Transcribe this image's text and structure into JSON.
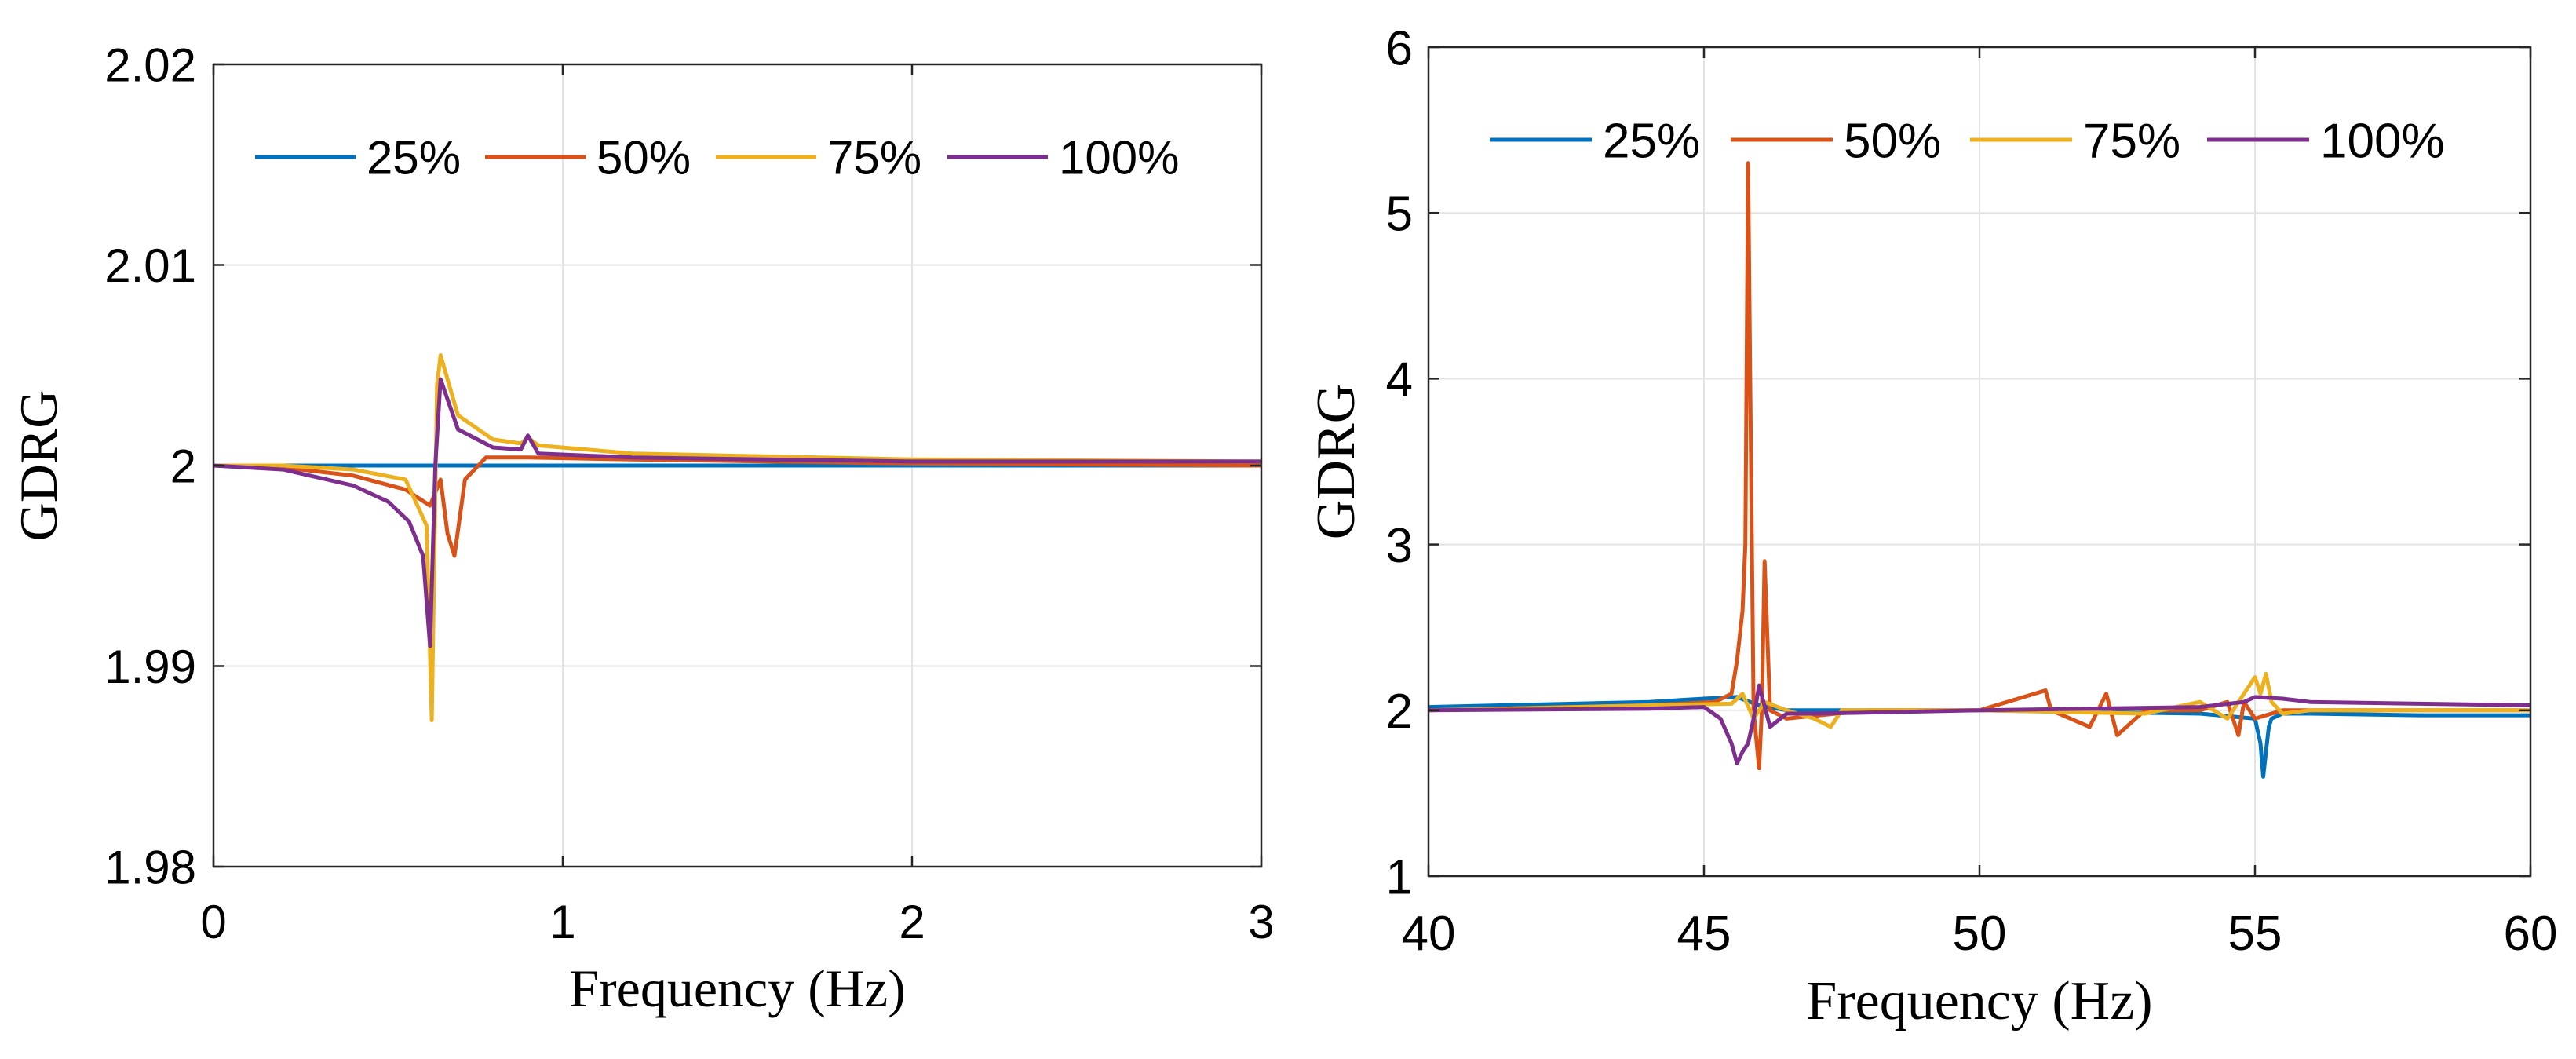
{
  "chart_data": [
    {
      "type": "line",
      "xlabel": "Frequency (Hz)",
      "ylabel": "GDRG",
      "xlim": [
        0,
        3
      ],
      "ylim": [
        1.98,
        2.02
      ],
      "x_ticks": [
        0,
        1,
        2,
        3
      ],
      "x_tick_labels": [
        "0",
        "1",
        "2",
        "3"
      ],
      "y_ticks": [
        1.98,
        1.99,
        2.0,
        2.01,
        2.02
      ],
      "y_tick_labels": [
        "1.98",
        "1.99",
        "2",
        "2.01",
        "2.02"
      ],
      "grid": true,
      "legend_position": "top",
      "series": [
        {
          "name": "25%",
          "color": "#0072BD",
          "x": [
            0,
            0.5,
            1,
            1.5,
            2,
            2.5,
            3
          ],
          "y": [
            2.0,
            2.0,
            2.0,
            2.0,
            2.0,
            2.0,
            2.0
          ]
        },
        {
          "name": "50%",
          "color": "#D95319",
          "x": [
            0,
            0.2,
            0.4,
            0.55,
            0.62,
            0.65,
            0.67,
            0.69,
            0.72,
            0.78,
            0.9,
            1.2,
            2,
            3
          ],
          "y": [
            2.0,
            1.9999,
            1.9995,
            1.9988,
            1.998,
            1.9993,
            1.9966,
            1.9955,
            1.9993,
            2.0004,
            2.0004,
            2.0003,
            2.0001,
            2.0
          ],
          "annotations": [
            "dip to 1.9955 near 0.69 Hz"
          ]
        },
        {
          "name": "75%",
          "color": "#EDB120",
          "x": [
            0,
            0.2,
            0.4,
            0.55,
            0.61,
            0.625,
            0.64,
            0.65,
            0.7,
            0.8,
            0.88,
            0.9,
            0.93,
            1.2,
            2,
            3
          ],
          "y": [
            2.0,
            2.0,
            1.9998,
            1.9993,
            1.997,
            1.9873,
            2.004,
            2.0055,
            2.0025,
            2.0013,
            2.0011,
            2.0014,
            2.001,
            2.0006,
            2.0003,
            2.0002
          ],
          "annotations": [
            "min 1.9873 near 0.63 Hz",
            "peak 2.0055 near 0.65 Hz"
          ]
        },
        {
          "name": "100%",
          "color": "#7E2F8E",
          "x": [
            0,
            0.2,
            0.4,
            0.5,
            0.56,
            0.6,
            0.62,
            0.635,
            0.65,
            0.7,
            0.8,
            0.88,
            0.9,
            0.93,
            1.2,
            2,
            3
          ],
          "y": [
            2.0,
            1.9998,
            1.999,
            1.9982,
            1.9972,
            1.9955,
            1.991,
            2.0,
            2.0043,
            2.0018,
            2.0009,
            2.0008,
            2.0015,
            2.0006,
            2.0004,
            2.0002,
            2.0002
          ],
          "annotations": [
            "min 1.991 near 0.62 Hz",
            "peak 2.0043 near 0.65 Hz"
          ]
        }
      ]
    },
    {
      "type": "line",
      "xlabel": "Frequency (Hz)",
      "ylabel": "GDRG",
      "xlim": [
        40,
        60
      ],
      "ylim": [
        1,
        6
      ],
      "x_ticks": [
        40,
        45,
        50,
        55,
        60
      ],
      "x_tick_labels": [
        "40",
        "45",
        "50",
        "55",
        "60"
      ],
      "y_ticks": [
        1,
        2,
        3,
        4,
        5,
        6
      ],
      "y_tick_labels": [
        "1",
        "2",
        "3",
        "4",
        "5",
        "6"
      ],
      "grid": true,
      "legend_position": "top",
      "series": [
        {
          "name": "25%",
          "color": "#0072BD",
          "x": [
            40,
            44,
            45,
            45.6,
            46,
            46.5,
            47,
            50,
            54,
            55,
            55.1,
            55.15,
            55.2,
            55.25,
            55.3,
            55.5,
            56,
            58,
            60
          ],
          "y": [
            2.02,
            2.05,
            2.07,
            2.08,
            2.03,
            2.0,
            2.0,
            2.0,
            1.98,
            1.95,
            1.8,
            1.6,
            1.75,
            1.9,
            1.95,
            1.98,
            1.98,
            1.97,
            1.97
          ],
          "annotations": [
            "dip to 1.6 near 55.2 Hz"
          ]
        },
        {
          "name": "50%",
          "color": "#D95319",
          "x": [
            40,
            44,
            45.2,
            45.5,
            45.6,
            45.7,
            45.75,
            45.8,
            45.85,
            45.9,
            46.0,
            46.05,
            46.1,
            46.2,
            46.5,
            48,
            50,
            51.2,
            51.3,
            52,
            52.3,
            52.5,
            53,
            54,
            54.5,
            54.7,
            54.8,
            55,
            55.5,
            56,
            58,
            60
          ],
          "y": [
            2.0,
            2.03,
            2.05,
            2.1,
            2.3,
            2.6,
            3.0,
            5.3,
            3.6,
            2.0,
            1.65,
            2.0,
            2.9,
            2.0,
            1.95,
            2.0,
            2.0,
            2.12,
            2.0,
            1.9,
            2.1,
            1.85,
            2.0,
            2.0,
            2.05,
            1.85,
            2.05,
            1.95,
            2.0,
            2.0,
            2.0,
            2.0
          ],
          "annotations": [
            "peak 5.3 near 45.8 Hz",
            "spike 2.9 near 46.1 Hz"
          ]
        },
        {
          "name": "75%",
          "color": "#EDB120",
          "x": [
            40,
            44,
            45.5,
            45.7,
            45.9,
            46.1,
            46.5,
            47,
            47.3,
            47.5,
            50,
            53,
            54,
            54.5,
            54.9,
            55.0,
            55.1,
            55.2,
            55.3,
            55.5,
            56,
            58,
            60
          ],
          "y": [
            2.0,
            2.03,
            2.04,
            2.1,
            1.95,
            2.05,
            2.0,
            1.95,
            1.9,
            2.0,
            2.0,
            1.98,
            2.05,
            1.95,
            2.15,
            2.2,
            2.1,
            2.22,
            2.05,
            1.98,
            2.0,
            2.0,
            2.0
          ],
          "annotations": [
            "peak 2.22 near 55.2 Hz"
          ]
        },
        {
          "name": "100%",
          "color": "#7E2F8E",
          "x": [
            40,
            44,
            45,
            45.3,
            45.5,
            45.6,
            45.7,
            45.8,
            45.9,
            46.0,
            46.2,
            46.5,
            47,
            50,
            54,
            54.8,
            55.0,
            55.5,
            56,
            58,
            60
          ],
          "y": [
            2.0,
            2.01,
            2.02,
            1.95,
            1.8,
            1.68,
            1.75,
            1.8,
            1.95,
            2.15,
            1.9,
            1.98,
            1.98,
            2.0,
            2.02,
            2.05,
            2.08,
            2.07,
            2.05,
            2.04,
            2.03
          ],
          "annotations": [
            "min 1.68 near 45.6 Hz"
          ]
        }
      ]
    }
  ]
}
